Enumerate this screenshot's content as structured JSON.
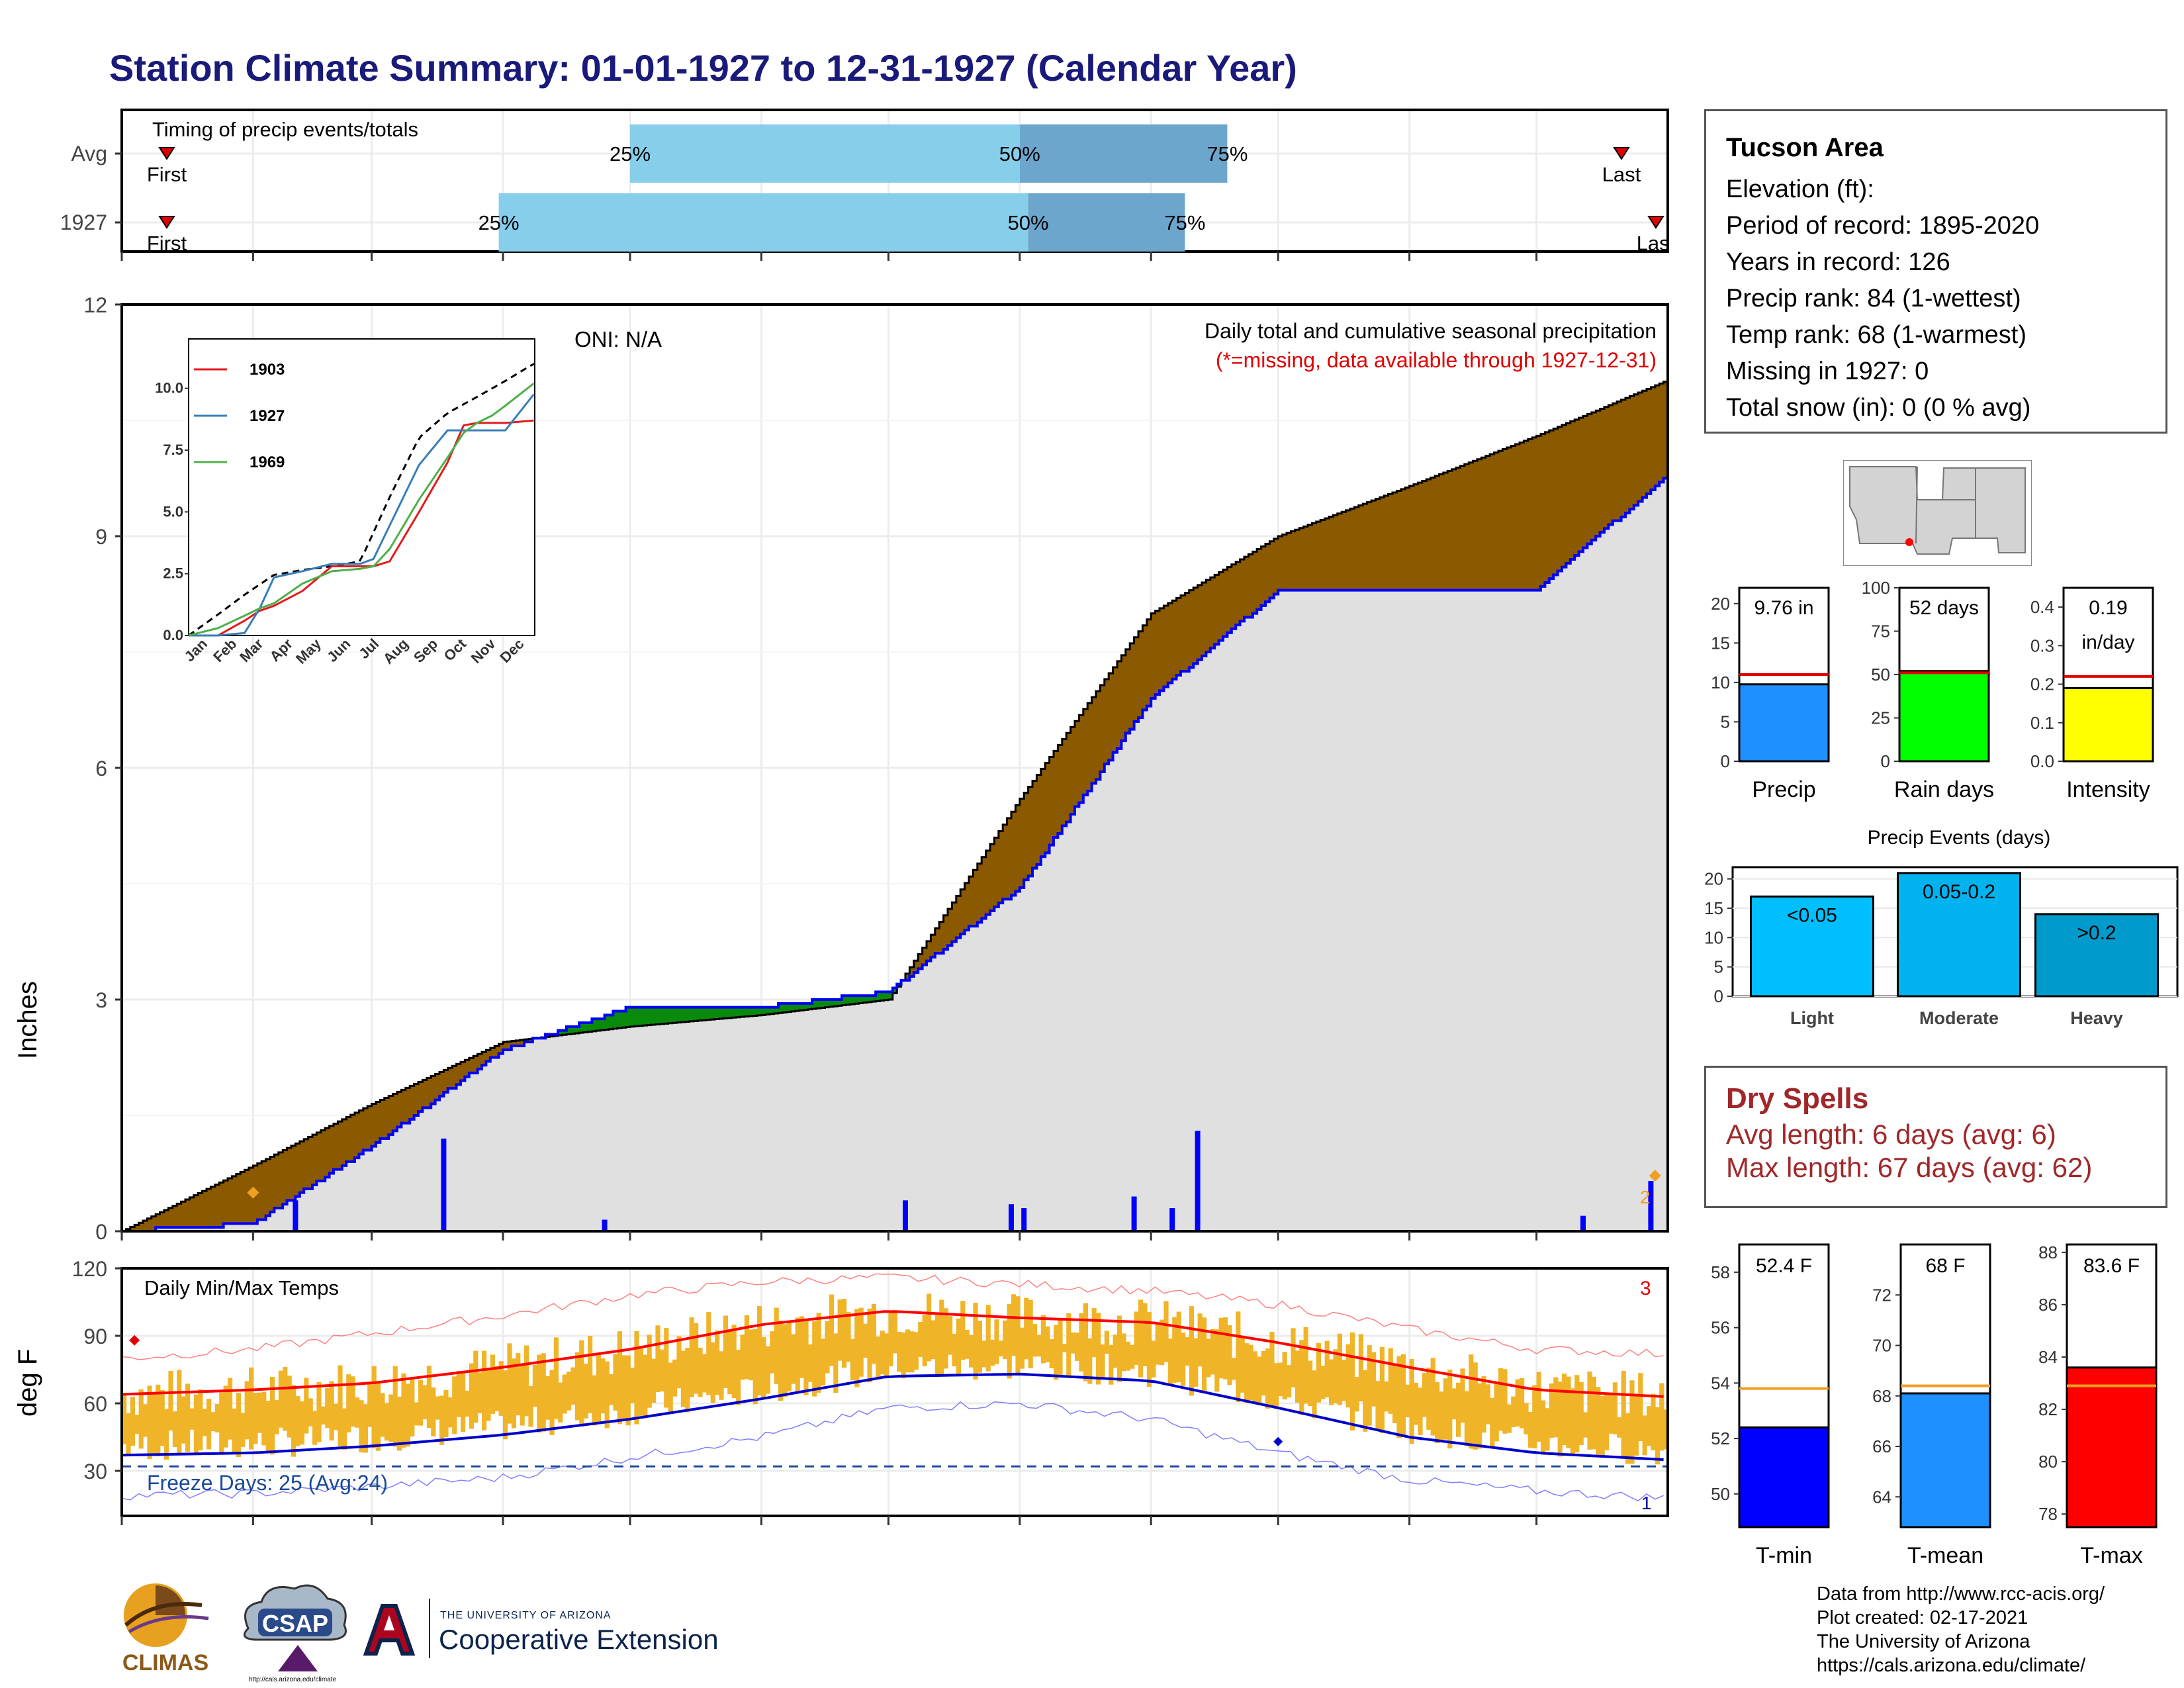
{
  "title": "Station Climate Summary: 01-01-1927 to 12-31-1927 (Calendar Year)",
  "colors": {
    "title": "#1a1a7a",
    "cum_avg": "#8b5a00",
    "above": "#0a8a0a",
    "cum_obs": "#0000ff",
    "fill_bg": "#e0e0e0",
    "temp_band": "#f0b429",
    "norm_max": "#ff0000",
    "norm_min": "#0000cc",
    "dry": "#a0282a"
  },
  "timing": {
    "label": "Timing of precip events/totals",
    "rows": [
      {
        "name": "Avg",
        "first_label": "First",
        "last_label": "Last",
        "p25": "25%",
        "p50": "50%",
        "p75": "75%"
      },
      {
        "name": "1927",
        "first_label": "First",
        "last_label": "Last",
        "p25": "25%",
        "p50": "50%",
        "p75": "75%"
      }
    ]
  },
  "precip_panel": {
    "ylabel": "Inches",
    "oni": "ONI: N/A",
    "caption": "Daily total and cumulative seasonal precipitation",
    "missing_note": "(*=missing, data available through 1927-12-31)",
    "yticks": [
      "0",
      "3",
      "6",
      "9",
      "12"
    ],
    "marker_label": "2"
  },
  "inset": {
    "yticks": [
      "0.0",
      "2.5",
      "5.0",
      "7.5",
      "10.0"
    ],
    "xticks": [
      "Jan",
      "Feb",
      "Mar",
      "Apr",
      "May",
      "Jun",
      "Jul",
      "Aug",
      "Sep",
      "Oct",
      "Nov",
      "Dec"
    ],
    "legend": [
      {
        "name": "1903",
        "color": "#e41a1c"
      },
      {
        "name": "1927",
        "color": "#377eb8"
      },
      {
        "name": "1969",
        "color": "#4daf4a"
      }
    ]
  },
  "temp_panel": {
    "ylabel": "deg F",
    "label": "Daily Min/Max Temps",
    "freeze": "Freeze Days: 25 (Avg:24)",
    "yticks": [
      "30",
      "60",
      "90",
      "120"
    ],
    "corner_top": "3",
    "corner_bottom": "1"
  },
  "months": [
    "Jan",
    "Feb",
    "Mar",
    "Apr",
    "May",
    "Jun",
    "Jul",
    "Aug",
    "Sep",
    "Oct",
    "Nov",
    "Dec"
  ],
  "station": {
    "name": "Tucson Area",
    "lines": [
      "Elevation (ft):",
      "Period of record: 1895-2020",
      "Years in record: 126",
      "Precip rank: 84 (1-wettest)",
      "Temp rank: 68 (1-warmest)",
      "Missing in 1927: 0",
      "Total snow (in): 0 (0 % avg)"
    ]
  },
  "bars": {
    "precip": {
      "label": "Precip",
      "value": 9.76,
      "value_text": "9.76 in",
      "avg": 11.0,
      "ymax": 22,
      "ticks": [
        "0",
        "5",
        "10",
        "15",
        "20"
      ],
      "color": "#1e90ff"
    },
    "rain_days": {
      "label": "Rain days",
      "value": 52,
      "value_text": "52 days",
      "avg": 51,
      "ymax": 100,
      "ticks": [
        "0",
        "25",
        "50",
        "75",
        "100"
      ],
      "color": "#00ff00"
    },
    "intensity": {
      "label": "Intensity",
      "value": 0.19,
      "value_text": "0.19",
      "value_text2": "in/day",
      "avg": 0.22,
      "ymax": 0.45,
      "ticks": [
        "0.0",
        "0.1",
        "0.2",
        "0.3",
        "0.4"
      ],
      "color": "#ffff00"
    }
  },
  "events": {
    "title": "Precip Events (days)",
    "ticks": [
      "0",
      "5",
      "10",
      "15",
      "20"
    ],
    "items": [
      {
        "cat": "Light",
        "label": "<0.05",
        "value": 17,
        "color": "#00bfff"
      },
      {
        "cat": "Moderate",
        "label": "0.05-0.2",
        "value": 21,
        "color": "#00b2ee"
      },
      {
        "cat": "Heavy",
        "label": ">0.2",
        "value": 14,
        "color": "#009acd"
      }
    ]
  },
  "dry_spells": {
    "head": "Dry Spells",
    "avg_line": "Avg length: 6 days (avg: 6)",
    "max_line": "Max length: 67 days (avg: 62)"
  },
  "temp_bars": {
    "tmin": {
      "label": "T-min",
      "value": 52.4,
      "value_text": "52.4 F",
      "avg": 53.8,
      "ymin": 48.8,
      "ymax": 59,
      "ticks": [
        "50",
        "52",
        "54",
        "56",
        "58"
      ],
      "color": "#0000ff"
    },
    "tmean": {
      "label": "T-mean",
      "value": 68.1,
      "value_text": "68 F",
      "avg": 68.4,
      "ymin": 62.8,
      "ymax": 74,
      "ticks": [
        "64",
        "66",
        "68",
        "70",
        "72"
      ],
      "color": "#1e90ff"
    },
    "tmax": {
      "label": "T-max",
      "value": 83.6,
      "value_text": "83.6 F",
      "avg": 82.9,
      "ymin": 77.5,
      "ymax": 88.3,
      "ticks": [
        "78",
        "80",
        "82",
        "84",
        "86",
        "88"
      ],
      "color": "#ff0000"
    }
  },
  "logos": {
    "climas": "CLIMAS",
    "csap": "CSAP",
    "csap_url": "http://cals.arizona.edu/climate",
    "ua_small": "THE UNIVERSITY OF ARIZONA",
    "ua_big": "Cooperative Extension"
  },
  "credits": [
    "Data from http://www.rcc-acis.org/",
    "Plot created: 02-17-2021",
    "The University of Arizona",
    "https://cals.arizona.edu/climate/"
  ],
  "chart_data": [
    {
      "type": "bar",
      "title": "Timing of precip events/totals",
      "categories": [
        "Avg",
        "1927"
      ],
      "series": [
        {
          "name": "25%",
          "values": [
            "May 1",
            "Mar 31"
          ]
        },
        {
          "name": "50%",
          "values": [
            "Aug 1",
            "Aug 3"
          ]
        },
        {
          "name": "75%",
          "values": [
            "Sep 19",
            "Sep 9"
          ]
        }
      ]
    },
    {
      "type": "area",
      "title": "Daily total and cumulative seasonal precipitation",
      "ylabel": "Inches",
      "ylim": [
        0,
        12
      ],
      "x": [
        "Jan 1",
        "Feb 1",
        "Mar 1",
        "Apr 1",
        "May 1",
        "Jun 1",
        "Jul 1",
        "Aug 1",
        "Sep 1",
        "Oct 1",
        "Nov 1",
        "Dec 1",
        "Dec 31"
      ],
      "series": [
        {
          "name": "cumulative average",
          "values": [
            0,
            0.85,
            1.65,
            2.45,
            2.65,
            2.8,
            3.0,
            5.6,
            8.0,
            9.0,
            9.65,
            10.3,
            11.0
          ]
        },
        {
          "name": "cumulative 1927",
          "values": [
            0,
            0.1,
            1.1,
            2.35,
            2.9,
            2.9,
            3.1,
            4.45,
            6.9,
            8.3,
            8.3,
            8.3,
            9.76
          ]
        }
      ],
      "daily": [
        {
          "x": "Feb 11",
          "y": 0.4
        },
        {
          "x": "Mar 18",
          "y": 1.2
        },
        {
          "x": "Apr 25",
          "y": 0.15
        },
        {
          "x": "Jul 5",
          "y": 0.4
        },
        {
          "x": "Jul 30",
          "y": 0.35
        },
        {
          "x": "Aug 2",
          "y": 0.3
        },
        {
          "x": "Aug 28",
          "y": 0.45
        },
        {
          "x": "Sep 6",
          "y": 0.3
        },
        {
          "x": "Sep 12",
          "y": 1.3
        },
        {
          "x": "Dec 12",
          "y": 0.2
        },
        {
          "x": "Dec 28",
          "y": 0.65
        }
      ]
    },
    {
      "type": "line",
      "title": "Daily Min/Max Temps",
      "ylabel": "deg F",
      "ylim": [
        10,
        120
      ],
      "x": [
        "Jan 1",
        "Feb 1",
        "Mar 1",
        "Apr 1",
        "May 1",
        "Jun 1",
        "Jul 1",
        "Aug 1",
        "Sep 1",
        "Oct 1",
        "Nov 1",
        "Dec 1",
        "Dec 31"
      ],
      "series": [
        {
          "name": "normal max",
          "values": [
            64,
            66,
            69,
            76,
            84,
            95,
            101,
            98,
            96,
            87,
            76,
            66,
            63
          ]
        },
        {
          "name": "normal min",
          "values": [
            37,
            38,
            41,
            46,
            53,
            62,
            72,
            73,
            70,
            58,
            45,
            38,
            35
          ]
        },
        {
          "name": "record max",
          "values": [
            80,
            84,
            91,
            99,
            108,
            114,
            116,
            113,
            110,
            104,
            93,
            84,
            82
          ]
        },
        {
          "name": "record min",
          "values": [
            19,
            20,
            23,
            27,
            36,
            45,
            58,
            60,
            53,
            38,
            26,
            21,
            18
          ]
        }
      ]
    },
    {
      "type": "bar",
      "categories": [
        "Precip",
        "Rain days",
        "Intensity"
      ],
      "values": [
        9.76,
        52,
        0.19
      ]
    },
    {
      "type": "bar",
      "title": "Precip Events (days)",
      "categories": [
        "Light",
        "Moderate",
        "Heavy"
      ],
      "values": [
        17,
        21,
        14
      ]
    },
    {
      "type": "bar",
      "categories": [
        "T-min",
        "T-mean",
        "T-max"
      ],
      "values": [
        52.4,
        68.1,
        83.6
      ]
    }
  ]
}
